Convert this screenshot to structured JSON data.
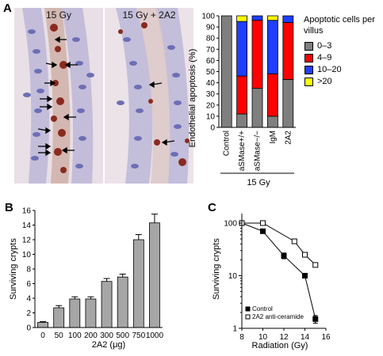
{
  "panels": {
    "a": {
      "letter": "A",
      "image_left_title": "15 Gy",
      "image_right_title": "15 Gy + 2A2"
    },
    "b": {
      "letter": "B"
    },
    "c": {
      "letter": "C"
    }
  },
  "colors": {
    "gray": "#7f7f7f",
    "red": "#ff0000",
    "blue": "#1f3eff",
    "yellow": "#ffff00",
    "bar_gray": "#a6a6a6",
    "tissue": "#e7dde6",
    "nuclei": "#6c6fb5",
    "stain": "#8a2a1e"
  },
  "chart_data": [
    {
      "type": "bar",
      "subtype": "stacked-percent",
      "categories": [
        "Control",
        "aSMase+/+",
        "aSMase−/−",
        "IgM",
        "2A2"
      ],
      "category_group_label": "15 Gy",
      "ylabel": "Endothelial apoptosis (%)",
      "ylim": [
        0,
        100
      ],
      "yticks": [
        0,
        10,
        20,
        30,
        40,
        50,
        60,
        70,
        80,
        90,
        100
      ],
      "legend_title": "Apoptotic cells per villus",
      "legend_position": "right",
      "series": [
        {
          "name": "0–3",
          "color": "#7f7f7f",
          "values": [
            100,
            12,
            35,
            10,
            43
          ]
        },
        {
          "name": "4–9",
          "color": "#ff0000",
          "values": [
            0,
            34,
            61,
            38,
            51
          ]
        },
        {
          "name": "10–20",
          "color": "#1f3eff",
          "values": [
            0,
            49,
            4,
            48,
            6
          ]
        },
        {
          "name": ">20",
          "color": "#ffff00",
          "values": [
            0,
            5,
            0,
            4,
            0
          ]
        }
      ]
    },
    {
      "type": "bar",
      "categories": [
        "0",
        "50",
        "100",
        "200",
        "300",
        "500",
        "750",
        "1000"
      ],
      "values": [
        0.7,
        2.7,
        3.9,
        3.9,
        6.3,
        6.9,
        12.0,
        14.3
      ],
      "errors": [
        0.1,
        0.3,
        0.3,
        0.3,
        0.4,
        0.4,
        0.7,
        1.2
      ],
      "xlabel": "2A2 (μg)",
      "ylabel": "Surviving crypts",
      "ylim": [
        0,
        16
      ],
      "yticks": [
        0,
        2,
        4,
        6,
        8,
        10,
        12,
        14,
        16
      ],
      "grid": false
    },
    {
      "type": "scatter",
      "scale_y": "log",
      "xlabel": "Radiation (Gy)",
      "ylabel": "Surviving crypts",
      "xlim": [
        8,
        16
      ],
      "ylim": [
        1,
        100
      ],
      "xticks": [
        8,
        10,
        12,
        14,
        16
      ],
      "yticks": [
        1,
        10,
        100
      ],
      "legend_position": "bottom-left",
      "series": [
        {
          "name": "Control",
          "marker": "filled-square",
          "x": [
            8,
            10,
            12,
            14,
            15
          ],
          "y": [
            120,
            70,
            24,
            10,
            1.5
          ],
          "errors": [
            0,
            0,
            3,
            1,
            0.25
          ]
        },
        {
          "name": "2A2 anti-ceramide",
          "marker": "open-square",
          "x": [
            8,
            10,
            13,
            14,
            15
          ],
          "y": [
            125,
            100,
            45,
            25,
            16
          ],
          "errors": [
            0,
            0,
            0,
            0,
            0
          ]
        }
      ]
    }
  ]
}
